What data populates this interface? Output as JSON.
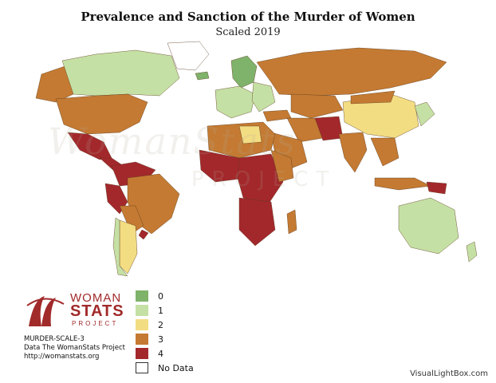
{
  "title": "Prevalence and Sanction of the Murder of Women",
  "subtitle": "Scaled 2019",
  "logo": {
    "line1": "WOMAN",
    "line2": "STATS",
    "line3": "PROJECT"
  },
  "info": {
    "code": "MURDER-SCALE-3",
    "source": "Data The WomanStats Project",
    "url": "http://womanstats.org"
  },
  "watermark": {
    "line1": "WomanStats",
    "line2": "PROJECT"
  },
  "legend": [
    {
      "label": "0",
      "color": "#7fb26a"
    },
    {
      "label": "1",
      "color": "#c5e0a4"
    },
    {
      "label": "2",
      "color": "#f3dd83"
    },
    {
      "label": "3",
      "color": "#c47a32"
    },
    {
      "label": "4",
      "color": "#a3282c"
    },
    {
      "label": "No Data",
      "color": "#ffffff"
    }
  ],
  "brand": "VisualLightBox.com"
}
